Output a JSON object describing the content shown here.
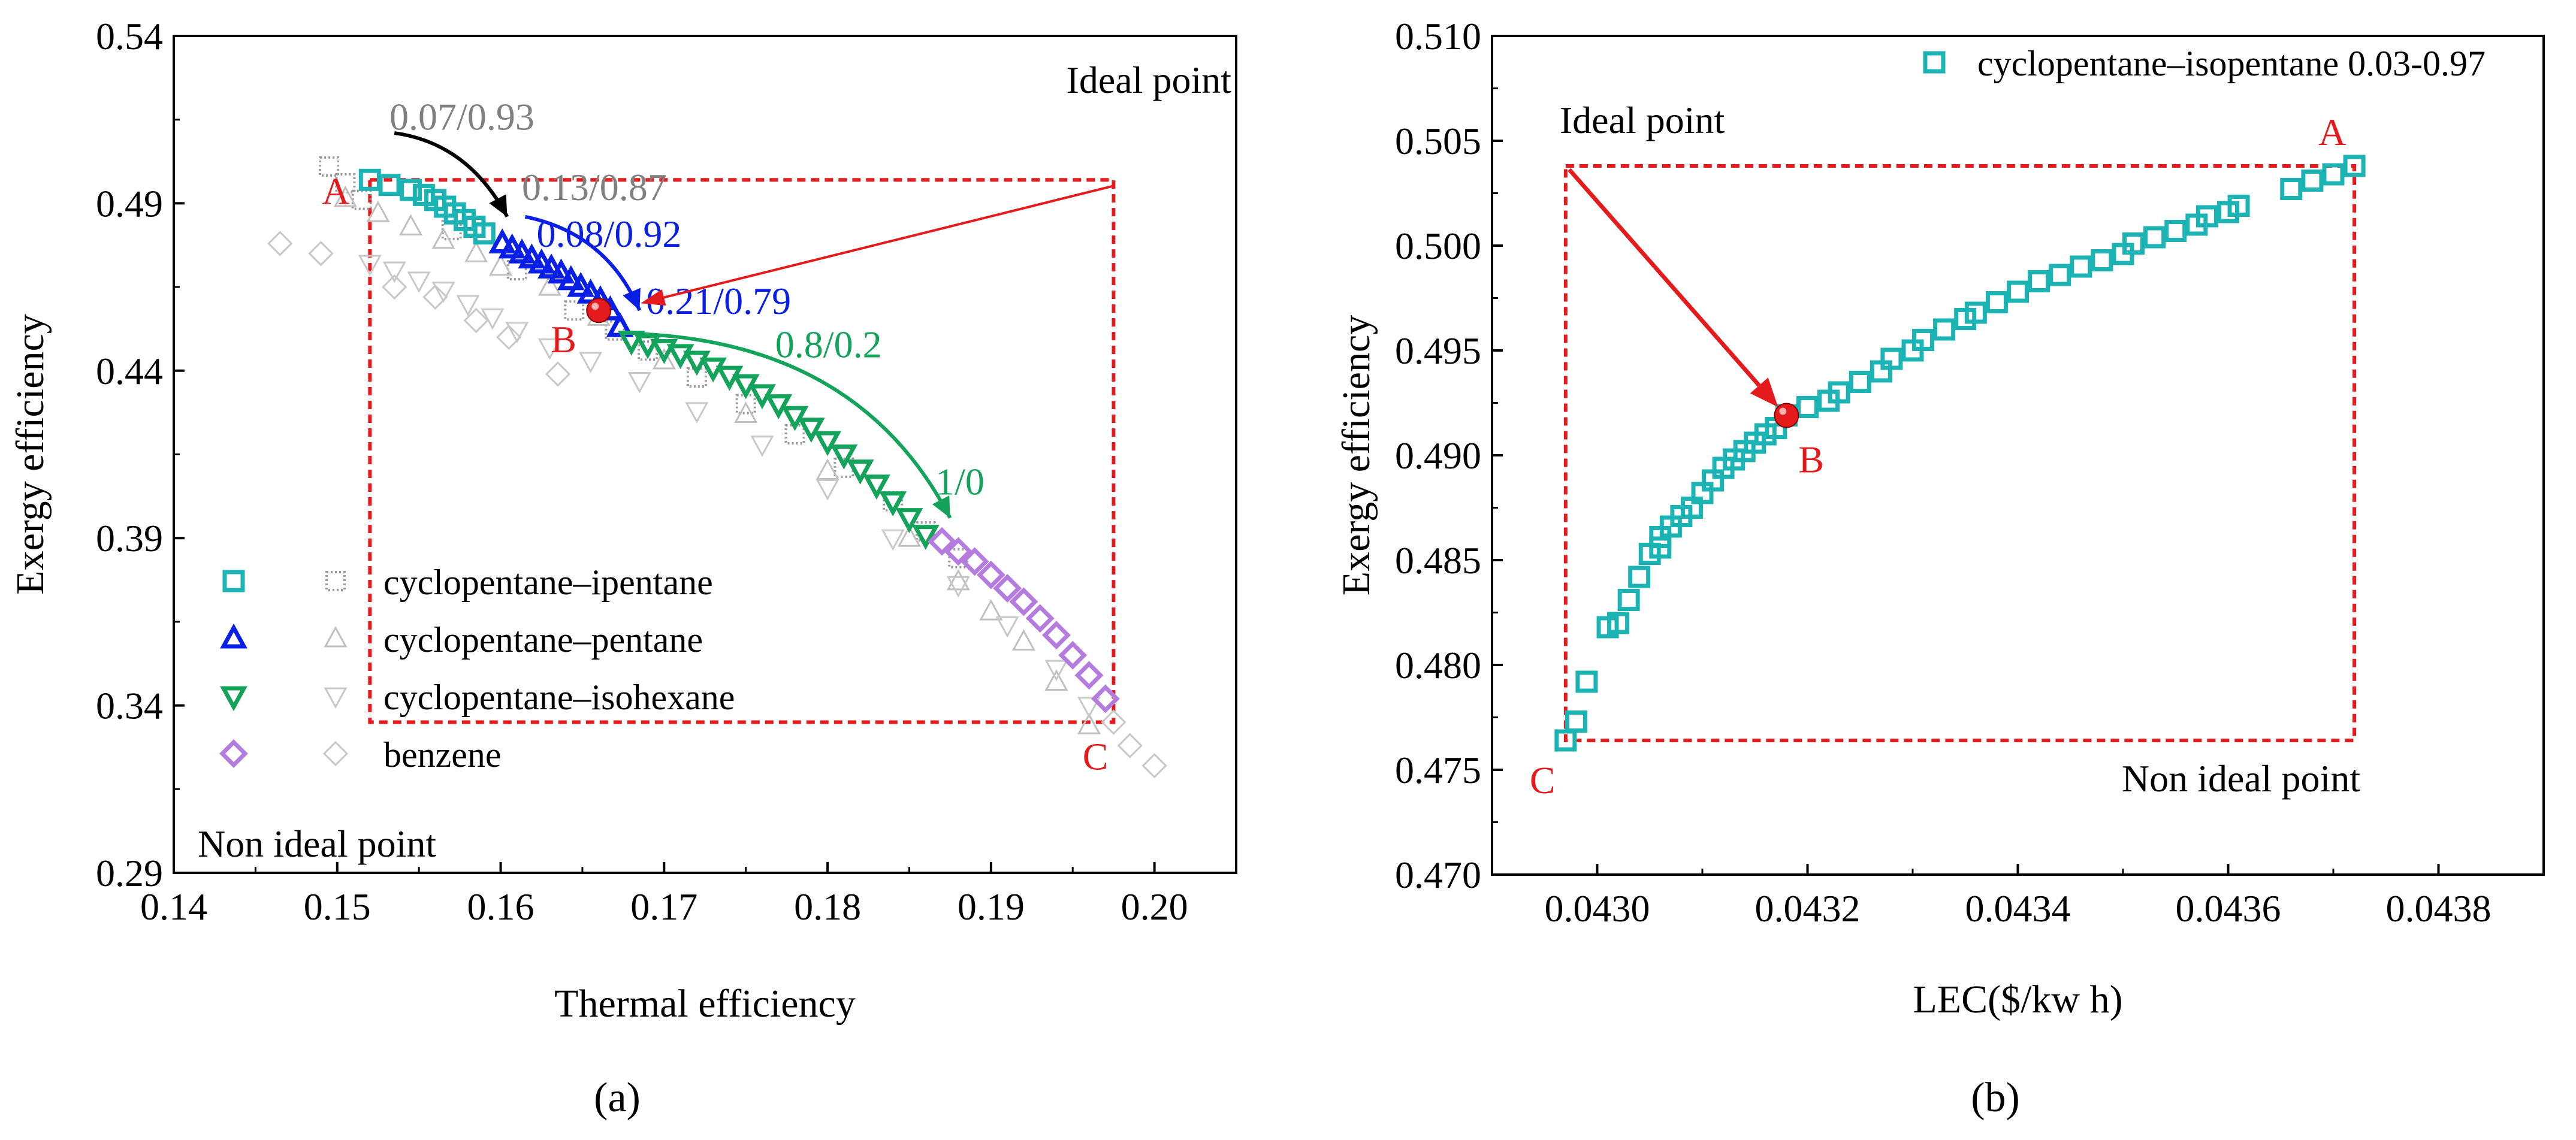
{
  "captions": [
    "(a)",
    "(b)"
  ],
  "colors": {
    "cyan": "#1bb3b3",
    "blue": "#0a1fe6",
    "green": "#14a35b",
    "purple": "#b57ce0",
    "grey": "#b8b8b8",
    "red": "#e41a1c",
    "dark_grey_label": "#808080"
  },
  "chart_data": [
    {
      "type": "scatter",
      "xlabel": "Thermal efficiency",
      "ylabel": "Exergy efficiency",
      "xlim": [
        0.14,
        0.205
      ],
      "ylim": [
        0.29,
        0.54
      ],
      "xticks": [
        "0.14",
        "0.15",
        "0.16",
        "0.17",
        "0.18",
        "0.19",
        "0.20"
      ],
      "yticks": [
        "0.29",
        "0.34",
        "0.39",
        "0.44",
        "0.49",
        "0.54"
      ],
      "legend": [
        "cyclopentane–ipentane",
        "cyclopentane–pentane",
        "cyclopentane–isohexane",
        "benzene"
      ],
      "legend_position": "bottom-left",
      "corner_labels": {
        "ideal": "Ideal point",
        "non_ideal": "Non ideal point"
      },
      "points": {
        "A": {
          "label": "A",
          "x": 0.152,
          "y": 0.497
        },
        "B": {
          "label": "B",
          "x": 0.166,
          "y": 0.458
        },
        "C": {
          "label": "C",
          "x": 0.197,
          "y": 0.337
        }
      },
      "ideal_box": {
        "x0": 0.152,
        "x1": 0.1975,
        "y0": 0.335,
        "y1": 0.497
      },
      "ratio_labels": [
        {
          "text": "0.07/0.93",
          "color": "#808080",
          "x": 0.1532,
          "y": 0.512
        },
        {
          "text": "0.13/0.87",
          "color": "#808080",
          "x": 0.1613,
          "y": 0.491
        },
        {
          "text": "0.08/0.92",
          "color": "#0a1fe6",
          "x": 0.1622,
          "y": 0.477
        },
        {
          "text": "0.21/0.79",
          "color": "#0a1fe6",
          "x": 0.1689,
          "y": 0.457
        },
        {
          "text": "0.8/0.2",
          "color": "#14a35b",
          "x": 0.1768,
          "y": 0.444
        },
        {
          "text": "1/0",
          "color": "#14a35b",
          "x": 0.1866,
          "y": 0.403
        }
      ],
      "series": [
        {
          "name": "cyclopentane–ipentane",
          "marker": "square",
          "color": "#1bb3b3",
          "x": [
            0.152,
            0.1532,
            0.1545,
            0.1553,
            0.156,
            0.1566,
            0.1572,
            0.1578,
            0.1584,
            0.159
          ],
          "y": [
            0.497,
            0.4955,
            0.494,
            0.4925,
            0.491,
            0.489,
            0.487,
            0.485,
            0.483,
            0.481
          ]
        },
        {
          "name": "cyclopentane–pentane",
          "marker": "triangle-up",
          "color": "#0a1fe6",
          "x": [
            0.1601,
            0.1607,
            0.1613,
            0.1619,
            0.1625,
            0.1631,
            0.1637,
            0.1643,
            0.1649,
            0.1655,
            0.1661,
            0.1667,
            0.1673
          ],
          "y": [
            0.478,
            0.4765,
            0.475,
            0.4735,
            0.472,
            0.4705,
            0.469,
            0.467,
            0.465,
            0.463,
            0.461,
            0.458,
            0.453
          ]
        },
        {
          "name": "cyclopentane–isohexane",
          "marker": "triangle-down",
          "color": "#14a35b",
          "x": [
            0.168,
            0.169,
            0.17,
            0.171,
            0.172,
            0.173,
            0.174,
            0.175,
            0.176,
            0.177,
            0.178,
            0.179,
            0.18,
            0.181,
            0.182,
            0.183,
            0.184,
            0.185,
            0.186
          ],
          "y": [
            0.449,
            0.448,
            0.4465,
            0.445,
            0.443,
            0.441,
            0.4385,
            0.436,
            0.433,
            0.43,
            0.4265,
            0.423,
            0.419,
            0.415,
            0.4105,
            0.406,
            0.401,
            0.396,
            0.391
          ]
        },
        {
          "name": "benzene",
          "marker": "diamond",
          "color": "#b57ce0",
          "x": [
            0.187,
            0.188,
            0.189,
            0.19,
            0.191,
            0.192,
            0.193,
            0.194,
            0.195,
            0.196,
            0.197
          ],
          "y": [
            0.389,
            0.386,
            0.383,
            0.379,
            0.375,
            0.371,
            0.366,
            0.361,
            0.355,
            0.349,
            0.342
          ]
        },
        {
          "name": "cyclopentane–ipentane",
          "marker": "square-dotted",
          "color": "#9a9a9a",
          "x": [
            0.1495,
            0.1505,
            0.1515,
            0.157,
            0.161,
            0.1645,
            0.167,
            0.169,
            0.172,
            0.175,
            0.178,
            0.181,
            0.184,
            0.186,
            0.188
          ],
          "y": [
            0.501,
            0.496,
            0.491,
            0.482,
            0.47,
            0.458,
            0.452,
            0.446,
            0.438,
            0.43,
            0.421,
            0.411,
            0.401,
            0.392,
            0.384
          ]
        },
        {
          "name": "cyclopentane–pentane",
          "marker": "triangle-up-open",
          "color": "#c0c0c0",
          "x": [
            0.1505,
            0.1525,
            0.1545,
            0.1565,
            0.1585,
            0.16,
            0.163,
            0.166,
            0.17,
            0.175,
            0.18,
            0.185,
            0.188,
            0.19,
            0.192,
            0.194,
            0.196
          ],
          "y": [
            0.4915,
            0.487,
            0.483,
            0.479,
            0.475,
            0.471,
            0.465,
            0.456,
            0.443,
            0.427,
            0.41,
            0.39,
            0.377,
            0.368,
            0.359,
            0.347,
            0.334
          ]
        },
        {
          "name": "cyclopentane–isohexane",
          "marker": "triangle-down-open",
          "color": "#c8c8c8",
          "x": [
            0.152,
            0.1535,
            0.155,
            0.1565,
            0.158,
            0.1595,
            0.161,
            0.163,
            0.1655,
            0.1685,
            0.172,
            0.176,
            0.18,
            0.184,
            0.188,
            0.191,
            0.194,
            0.196
          ],
          "y": [
            0.472,
            0.47,
            0.467,
            0.464,
            0.46,
            0.456,
            0.452,
            0.447,
            0.443,
            0.437,
            0.428,
            0.418,
            0.405,
            0.39,
            0.376,
            0.364,
            0.351,
            0.34
          ]
        },
        {
          "name": "benzene",
          "marker": "diamond-open",
          "color": "#c8c8c8",
          "x": [
            0.1465,
            0.149,
            0.1535,
            0.156,
            0.1585,
            0.1605,
            0.1635,
            0.1975,
            0.1985,
            0.2
          ],
          "y": [
            0.478,
            0.475,
            0.465,
            0.462,
            0.455,
            0.45,
            0.439,
            0.335,
            0.328,
            0.322
          ]
        }
      ]
    },
    {
      "type": "scatter",
      "xlabel": "LEC($/kw h)",
      "ylabel": "Exergy efficiency",
      "xlim": [
        0.0429,
        0.0439
      ],
      "ylim": [
        0.47,
        0.51
      ],
      "xticks": [
        "0.0430",
        "0.0432",
        "0.0434",
        "0.0436",
        "0.0438"
      ],
      "yticks": [
        "0.470",
        "0.475",
        "0.480",
        "0.485",
        "0.490",
        "0.495",
        "0.500",
        "0.505",
        "0.510"
      ],
      "legend": [
        "cyclopentane–isopentane 0.03-0.97"
      ],
      "legend_position": "top-right",
      "corner_labels": {
        "ideal": "Ideal point",
        "non_ideal": "Non ideal point"
      },
      "points": {
        "A": {
          "label": "A",
          "x": 0.04372,
          "y": 0.5038
        },
        "B": {
          "label": "B",
          "x": 0.04318,
          "y": 0.4919
        },
        "C": {
          "label": "C",
          "x": 0.04297,
          "y": 0.4764
        }
      },
      "ideal_box": {
        "x0": 0.04297,
        "x1": 0.04372,
        "y0": 0.4764,
        "y1": 0.5038
      },
      "series": [
        {
          "name": "cyclopentane–isopentane 0.03-0.97",
          "marker": "square",
          "color": "#1bb3b3",
          "x": [
            0.04297,
            0.04298,
            0.04299,
            0.04301,
            0.04302,
            0.04303,
            0.04304,
            0.04305,
            0.04306,
            0.04306,
            0.04307,
            0.04308,
            0.04309,
            0.0431,
            0.04311,
            0.04312,
            0.04313,
            0.04314,
            0.04315,
            0.04316,
            0.04317,
            0.04318,
            0.0432,
            0.04322,
            0.04323,
            0.04325,
            0.04327,
            0.04328,
            0.0433,
            0.04331,
            0.04333,
            0.04335,
            0.04336,
            0.04338,
            0.0434,
            0.04342,
            0.04344,
            0.04346,
            0.04348,
            0.0435,
            0.04351,
            0.04353,
            0.04355,
            0.04357,
            0.04358,
            0.0436,
            0.04361,
            0.04366,
            0.04368,
            0.0437,
            0.04372
          ],
          "y": [
            0.4764,
            0.4773,
            0.4792,
            0.4818,
            0.482,
            0.4831,
            0.4842,
            0.4853,
            0.4856,
            0.4861,
            0.4866,
            0.4871,
            0.4875,
            0.4882,
            0.4888,
            0.4894,
            0.4898,
            0.4902,
            0.4906,
            0.491,
            0.4913,
            0.4919,
            0.4923,
            0.4926,
            0.493,
            0.4935,
            0.494,
            0.4946,
            0.495,
            0.4955,
            0.496,
            0.4965,
            0.4968,
            0.4973,
            0.4978,
            0.4983,
            0.4986,
            0.499,
            0.4993,
            0.4996,
            0.5001,
            0.5004,
            0.5007,
            0.501,
            0.5014,
            0.5016,
            0.5019,
            0.5027,
            0.5031,
            0.5034,
            0.5038
          ]
        }
      ]
    }
  ]
}
